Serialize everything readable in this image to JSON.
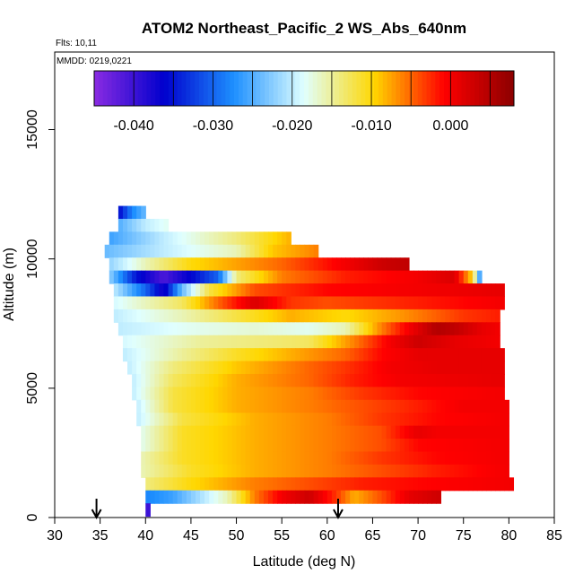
{
  "chart_data": {
    "type": "heatmap",
    "title": "ATOM2 Northeast_Pacific_2 WS_Abs_640nm",
    "subtitle_lines": [
      "Flts: 10,11",
      "MMDD: 0219,0221"
    ],
    "xlabel": "Latitude (deg N)",
    "ylabel": "Altitude (m)",
    "xlim": [
      30,
      85
    ],
    "ylim": [
      0,
      18000
    ],
    "x_ticks": [
      30,
      35,
      40,
      45,
      50,
      55,
      60,
      65,
      70,
      75,
      80,
      85
    ],
    "y_ticks": [
      0,
      5000,
      10000,
      15000
    ],
    "y_tick_labels": [
      "0",
      "5000",
      "10000",
      "15000"
    ],
    "colorbar": {
      "position": "top",
      "range": [
        -0.045,
        0.008
      ],
      "ticks": [
        -0.04,
        -0.03,
        -0.02,
        -0.01,
        0.0
      ],
      "tick_labels": [
        "-0.040",
        "-0.030",
        "-0.020",
        "-0.010",
        "0.000"
      ],
      "colors": [
        "#8a2be2",
        "#0000cd",
        "#1e90ff",
        "#e0ffff",
        "#ffd700",
        "#ff0000",
        "#8b0000"
      ]
    },
    "markers": [
      {
        "type": "arrow",
        "x": 34.6
      },
      {
        "type": "arrow",
        "x": 61.2
      }
    ],
    "rows": [
      {
        "alt": 11800,
        "xmin": 37.0,
        "xmax": 40.0,
        "stops": [
          [
            37.0,
            -0.036
          ],
          [
            38.5,
            -0.028
          ],
          [
            40.0,
            -0.024
          ]
        ]
      },
      {
        "alt": 11300,
        "xmin": 37.0,
        "xmax": 42.5,
        "stops": [
          [
            37.0,
            -0.025
          ],
          [
            40.0,
            -0.02
          ],
          [
            42.5,
            -0.018
          ]
        ]
      },
      {
        "alt": 10800,
        "xmin": 36.0,
        "xmax": 56.0,
        "stops": [
          [
            36.0,
            -0.026
          ],
          [
            42.0,
            -0.02
          ],
          [
            50.0,
            -0.014
          ],
          [
            56.0,
            -0.008
          ]
        ]
      },
      {
        "alt": 10300,
        "xmin": 35.5,
        "xmax": 59.0,
        "stops": [
          [
            35.5,
            -0.024
          ],
          [
            42.0,
            -0.02
          ],
          [
            50.0,
            -0.016
          ],
          [
            54.0,
            -0.009
          ],
          [
            59.0,
            -0.006
          ]
        ]
      },
      {
        "alt": 9800,
        "xmin": 36.0,
        "xmax": 69.0,
        "stops": [
          [
            36.0,
            -0.022
          ],
          [
            40.0,
            -0.016
          ],
          [
            45.0,
            -0.01
          ],
          [
            55.0,
            -0.005
          ],
          [
            62.0,
            0.0
          ],
          [
            66.0,
            0.003
          ],
          [
            69.0,
            0.004
          ]
        ]
      },
      {
        "alt": 9300,
        "xmin": 36.0,
        "xmax": 77.0,
        "stops": [
          [
            36.0,
            -0.022
          ],
          [
            39.0,
            -0.035
          ],
          [
            42.0,
            -0.041
          ],
          [
            45.0,
            -0.036
          ],
          [
            48.0,
            -0.03
          ],
          [
            50.0,
            -0.014
          ],
          [
            55.0,
            -0.006
          ],
          [
            62.0,
            -0.002
          ],
          [
            70.0,
            0.0
          ],
          [
            74.0,
            0.002
          ],
          [
            76.0,
            -0.01
          ],
          [
            77.0,
            -0.03
          ]
        ]
      },
      {
        "alt": 8800,
        "xmin": 36.5,
        "xmax": 79.5,
        "stops": [
          [
            36.5,
            -0.02
          ],
          [
            40.0,
            -0.03
          ],
          [
            42.0,
            -0.038
          ],
          [
            44.0,
            -0.024
          ],
          [
            47.0,
            -0.012
          ],
          [
            52.0,
            -0.004
          ],
          [
            60.0,
            -0.001
          ],
          [
            70.0,
            0.0
          ],
          [
            79.5,
            0.001
          ]
        ]
      },
      {
        "alt": 8300,
        "xmin": 36.5,
        "xmax": 79.5,
        "stops": [
          [
            36.5,
            -0.019
          ],
          [
            44.0,
            -0.013
          ],
          [
            48.0,
            -0.005
          ],
          [
            52.0,
            0.002
          ],
          [
            56.0,
            -0.003
          ],
          [
            60.0,
            -0.004
          ],
          [
            70.0,
            -0.002
          ],
          [
            79.5,
            0.0
          ]
        ]
      },
      {
        "alt": 7800,
        "xmin": 36.5,
        "xmax": 79.0,
        "stops": [
          [
            36.5,
            -0.02
          ],
          [
            44.0,
            -0.016
          ],
          [
            50.0,
            -0.012
          ],
          [
            56.0,
            -0.008
          ],
          [
            62.0,
            -0.01
          ],
          [
            68.0,
            -0.007
          ],
          [
            75.0,
            -0.003
          ],
          [
            79.0,
            -0.002
          ]
        ]
      },
      {
        "alt": 7300,
        "xmin": 37.0,
        "xmax": 79.0,
        "stops": [
          [
            37.0,
            -0.02
          ],
          [
            45.0,
            -0.018
          ],
          [
            52.0,
            -0.017
          ],
          [
            58.0,
            -0.018
          ],
          [
            62.0,
            -0.016
          ],
          [
            66.0,
            -0.006
          ],
          [
            69.0,
            0.0
          ],
          [
            72.0,
            0.005
          ],
          [
            74.0,
            0.004
          ],
          [
            77.0,
            0.001
          ],
          [
            79.0,
            0.0
          ]
        ]
      },
      {
        "alt": 6800,
        "xmin": 37.5,
        "xmax": 79.0,
        "stops": [
          [
            37.5,
            -0.019
          ],
          [
            46.0,
            -0.015
          ],
          [
            52.0,
            -0.014
          ],
          [
            58.0,
            -0.013
          ],
          [
            63.0,
            -0.006
          ],
          [
            67.0,
            0.0
          ],
          [
            70.0,
            0.003
          ],
          [
            74.0,
            0.001
          ],
          [
            79.0,
            0.0
          ]
        ]
      },
      {
        "alt": 6300,
        "xmin": 37.5,
        "xmax": 79.5,
        "stops": [
          [
            37.5,
            -0.02
          ],
          [
            44.0,
            -0.015
          ],
          [
            50.0,
            -0.011
          ],
          [
            56.0,
            -0.008
          ],
          [
            62.0,
            -0.005
          ],
          [
            66.0,
            -0.001
          ],
          [
            70.0,
            0.001
          ],
          [
            79.5,
            0.001
          ]
        ]
      },
      {
        "alt": 5800,
        "xmin": 38.0,
        "xmax": 79.5,
        "stops": [
          [
            38.0,
            -0.02
          ],
          [
            43.0,
            -0.014
          ],
          [
            50.0,
            -0.009
          ],
          [
            56.0,
            -0.006
          ],
          [
            62.0,
            -0.003
          ],
          [
            67.0,
            0.0
          ],
          [
            72.0,
            0.001
          ],
          [
            79.5,
            0.001
          ]
        ]
      },
      {
        "alt": 5300,
        "xmin": 38.5,
        "xmax": 79.5,
        "stops": [
          [
            38.5,
            -0.02
          ],
          [
            43.0,
            -0.013
          ],
          [
            50.0,
            -0.008
          ],
          [
            58.0,
            -0.005
          ],
          [
            63.0,
            -0.002
          ],
          [
            68.0,
            0.0
          ],
          [
            79.5,
            0.001
          ]
        ]
      },
      {
        "alt": 4800,
        "xmin": 38.5,
        "xmax": 79.5,
        "stops": [
          [
            38.5,
            -0.02
          ],
          [
            43.0,
            -0.012
          ],
          [
            50.0,
            -0.008
          ],
          [
            58.0,
            -0.006
          ],
          [
            64.0,
            -0.003
          ],
          [
            70.0,
            -0.001
          ],
          [
            79.5,
            0.0
          ]
        ]
      },
      {
        "alt": 4300,
        "xmin": 39.0,
        "xmax": 80.0,
        "stops": [
          [
            39.0,
            -0.02
          ],
          [
            43.0,
            -0.012
          ],
          [
            50.0,
            -0.008
          ],
          [
            58.0,
            -0.006
          ],
          [
            64.0,
            -0.004
          ],
          [
            70.0,
            -0.002
          ],
          [
            75.0,
            0.0
          ],
          [
            80.0,
            0.0
          ]
        ]
      },
      {
        "alt": 3800,
        "xmin": 39.0,
        "xmax": 80.0,
        "stops": [
          [
            39.0,
            -0.02
          ],
          [
            44.0,
            -0.012
          ],
          [
            52.0,
            -0.008
          ],
          [
            60.0,
            -0.006
          ],
          [
            66.0,
            -0.003
          ],
          [
            72.0,
            -0.001
          ],
          [
            80.0,
            0.0
          ]
        ]
      },
      {
        "alt": 3300,
        "xmin": 39.5,
        "xmax": 80.0,
        "stops": [
          [
            39.5,
            -0.018
          ],
          [
            44.0,
            -0.011
          ],
          [
            52.0,
            -0.008
          ],
          [
            60.0,
            -0.006
          ],
          [
            66.0,
            -0.004
          ],
          [
            70.0,
            0.001
          ],
          [
            72.0,
            0.0
          ],
          [
            80.0,
            0.0
          ]
        ]
      },
      {
        "alt": 2800,
        "xmin": 39.5,
        "xmax": 80.0,
        "stops": [
          [
            39.5,
            -0.018
          ],
          [
            44.0,
            -0.011
          ],
          [
            52.0,
            -0.008
          ],
          [
            60.0,
            -0.006
          ],
          [
            66.0,
            -0.004
          ],
          [
            70.0,
            -0.001
          ],
          [
            80.0,
            0.0
          ]
        ]
      },
      {
        "alt": 2300,
        "xmin": 39.5,
        "xmax": 80.0,
        "stops": [
          [
            39.5,
            -0.016
          ],
          [
            44.0,
            -0.011
          ],
          [
            52.0,
            -0.008
          ],
          [
            60.0,
            -0.006
          ],
          [
            66.0,
            -0.003
          ],
          [
            72.0,
            -0.001
          ],
          [
            80.0,
            0.0
          ]
        ]
      },
      {
        "alt": 1800,
        "xmin": 39.5,
        "xmax": 80.0,
        "stops": [
          [
            39.5,
            -0.016
          ],
          [
            45.0,
            -0.011
          ],
          [
            52.0,
            -0.008
          ],
          [
            60.0,
            -0.006
          ],
          [
            66.0,
            -0.004
          ],
          [
            72.0,
            -0.002
          ],
          [
            80.0,
            0.0
          ]
        ]
      },
      {
        "alt": 1300,
        "xmin": 40.0,
        "xmax": 80.5,
        "stops": [
          [
            40.0,
            -0.014
          ],
          [
            45.0,
            -0.01
          ],
          [
            52.0,
            -0.006
          ],
          [
            58.0,
            -0.004
          ],
          [
            64.0,
            -0.002
          ],
          [
            70.0,
            -0.001
          ],
          [
            80.5,
            0.0
          ]
        ]
      },
      {
        "alt": 800,
        "xmin": 40.0,
        "xmax": 72.5,
        "stops": [
          [
            40.0,
            -0.028
          ],
          [
            43.0,
            -0.026
          ],
          [
            46.0,
            -0.021
          ],
          [
            49.0,
            -0.016
          ],
          [
            52.0,
            -0.006
          ],
          [
            55.0,
            0.0
          ],
          [
            58.0,
            0.003
          ],
          [
            61.0,
            -0.003
          ],
          [
            63.0,
            -0.008
          ],
          [
            66.0,
            -0.004
          ],
          [
            69.0,
            0.001
          ],
          [
            72.5,
            0.003
          ]
        ]
      },
      {
        "alt": 300,
        "xmin": 40.0,
        "xmax": 40.5,
        "stops": [
          [
            40.0,
            -0.04
          ],
          [
            40.5,
            -0.04
          ]
        ]
      }
    ]
  }
}
